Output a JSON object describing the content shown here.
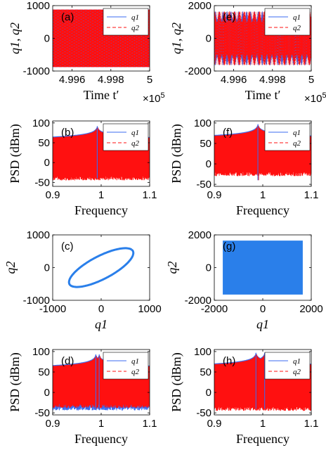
{
  "colors": {
    "q1": "#3b6bf0",
    "q2": "#ff1010",
    "scatter": "#2a7fea"
  },
  "chart_data": [
    {
      "id": "a",
      "panel_label": "(a)",
      "type": "line",
      "xlim": [
        499500,
        500000
      ],
      "ylim": [
        -1000,
        1000
      ],
      "xticks": [
        499600,
        499800,
        500000
      ],
      "xtick_labels": [
        "4.996",
        "4.998",
        "5"
      ],
      "yticks": [
        -1000,
        0,
        1000
      ],
      "ytick_labels": [
        "-1000",
        "0",
        "1000"
      ],
      "xlabel": "Time t′",
      "x_exponent": "×10",
      "x_exponent_power": "5",
      "ylabel": "q1, q2",
      "series": [
        {
          "name": "q1",
          "amplitude": 880,
          "style": "solid"
        },
        {
          "name": "q2",
          "amplitude": 880,
          "style": "dashed"
        }
      ],
      "legend_position": "top-right"
    },
    {
      "id": "e",
      "panel_label": "(e)",
      "type": "line",
      "xlim": [
        499500,
        500000
      ],
      "ylim": [
        -2000,
        2000
      ],
      "xticks": [
        499600,
        499800,
        500000
      ],
      "xtick_labels": [
        "4.996",
        "4.998",
        "5"
      ],
      "yticks": [
        -2000,
        0,
        2000
      ],
      "ytick_labels": [
        "-2000",
        "0",
        "2000"
      ],
      "xlabel": "Time t′",
      "x_exponent": "×10",
      "x_exponent_power": "5",
      "ylabel": "q1, q2",
      "series": [
        {
          "name": "q1",
          "amplitude": 1650,
          "style": "solid"
        },
        {
          "name": "q2",
          "amplitude": 1650,
          "style": "dashed"
        }
      ],
      "legend_position": "top-right"
    },
    {
      "id": "b",
      "panel_label": "(b)",
      "type": "line",
      "xlim": [
        0.9,
        1.1
      ],
      "ylim": [
        -60,
        105
      ],
      "xticks": [
        0.9,
        1.0,
        1.1
      ],
      "xtick_labels": [
        "0.9",
        "1",
        "1.1"
      ],
      "yticks": [
        -50,
        0,
        50,
        100
      ],
      "ytick_labels": [
        "-50",
        "0",
        "50",
        "100"
      ],
      "xlabel": "Frequency",
      "ylabel": "PSD (dBm)",
      "peak_freqs": [
        0.992
      ],
      "peak_db": 92,
      "series": [
        {
          "name": "q1",
          "style": "solid"
        },
        {
          "name": "q2",
          "style": "dashed"
        }
      ],
      "legend_position": "top-right"
    },
    {
      "id": "f",
      "panel_label": "(f)",
      "type": "line",
      "xlim": [
        0.9,
        1.1
      ],
      "ylim": [
        -55,
        105
      ],
      "xticks": [
        0.9,
        1.0,
        1.1
      ],
      "xtick_labels": [
        "0.9",
        "1",
        "1.1"
      ],
      "yticks": [
        -50,
        0,
        50,
        100
      ],
      "ytick_labels": [
        "-50",
        "0",
        "50",
        "100"
      ],
      "xlabel": "Frequency",
      "ylabel": "PSD (dBm)",
      "peak_freqs": [
        0.99
      ],
      "peak_db": 97,
      "series": [
        {
          "name": "q1",
          "style": "solid"
        },
        {
          "name": "q2",
          "style": "dashed"
        }
      ],
      "legend_position": "top-right"
    },
    {
      "id": "c",
      "panel_label": "(c)",
      "type": "scatter",
      "xlim": [
        -1000,
        1000
      ],
      "ylim": [
        -1000,
        1000
      ],
      "xticks": [
        -1000,
        0,
        1000
      ],
      "xtick_labels": [
        "-1000",
        "0",
        "1000"
      ],
      "yticks": [
        -1000,
        0,
        1000
      ],
      "ytick_labels": [
        "-1000",
        "0",
        "1000"
      ],
      "xlabel": "q1",
      "ylabel": "q2",
      "ellipse_extremes": [
        [
          870,
          820
        ],
        [
          -870,
          -820
        ],
        [
          -180,
          500
        ],
        [
          180,
          -500
        ]
      ]
    },
    {
      "id": "g",
      "panel_label": "(g)",
      "type": "scatter",
      "xlim": [
        -2000,
        2000
      ],
      "ylim": [
        -2000,
        2000
      ],
      "xticks": [
        -2000,
        0,
        2000
      ],
      "xtick_labels": [
        "-2000",
        "0",
        "2000"
      ],
      "yticks": [
        -2000,
        0,
        2000
      ],
      "ytick_labels": [
        "-2000",
        "0",
        "2000"
      ],
      "xlabel": "q1",
      "ylabel": "q2",
      "filled_region": {
        "x": [
          -1650,
          1650
        ],
        "y": [
          -1650,
          1650
        ]
      }
    },
    {
      "id": "d",
      "panel_label": "(d)",
      "type": "line",
      "xlim": [
        0.9,
        1.1
      ],
      "ylim": [
        -55,
        105
      ],
      "xticks": [
        0.9,
        1.0,
        1.1
      ],
      "xtick_labels": [
        "0.9",
        "1",
        "1.1"
      ],
      "yticks": [
        -50,
        0,
        50,
        100
      ],
      "ytick_labels": [
        "-50",
        "0",
        "50",
        "100"
      ],
      "xlabel": "Frequency",
      "ylabel": "PSD (dBm)",
      "peak_freqs": [
        0.989,
        0.996
      ],
      "peak_db": 93,
      "series": [
        {
          "name": "q1",
          "style": "solid"
        },
        {
          "name": "q2",
          "style": "dashed"
        }
      ],
      "legend_position": "top-right"
    },
    {
      "id": "h",
      "panel_label": "(h)",
      "type": "line",
      "xlim": [
        0.9,
        1.1
      ],
      "ylim": [
        -55,
        105
      ],
      "xticks": [
        0.9,
        1.0,
        1.1
      ],
      "xtick_labels": [
        "0.9",
        "1",
        "1.1"
      ],
      "yticks": [
        -50,
        0,
        50,
        100
      ],
      "ytick_labels": [
        "-50",
        "0",
        "50",
        "100"
      ],
      "xlabel": "Frequency",
      "ylabel": "PSD (dBm)",
      "peak_freqs": [
        0.986,
        1.004
      ],
      "peak_db": 97,
      "series": [
        {
          "name": "q1",
          "style": "solid"
        },
        {
          "name": "q2",
          "style": "dashed"
        }
      ],
      "legend_position": "top-right"
    }
  ]
}
